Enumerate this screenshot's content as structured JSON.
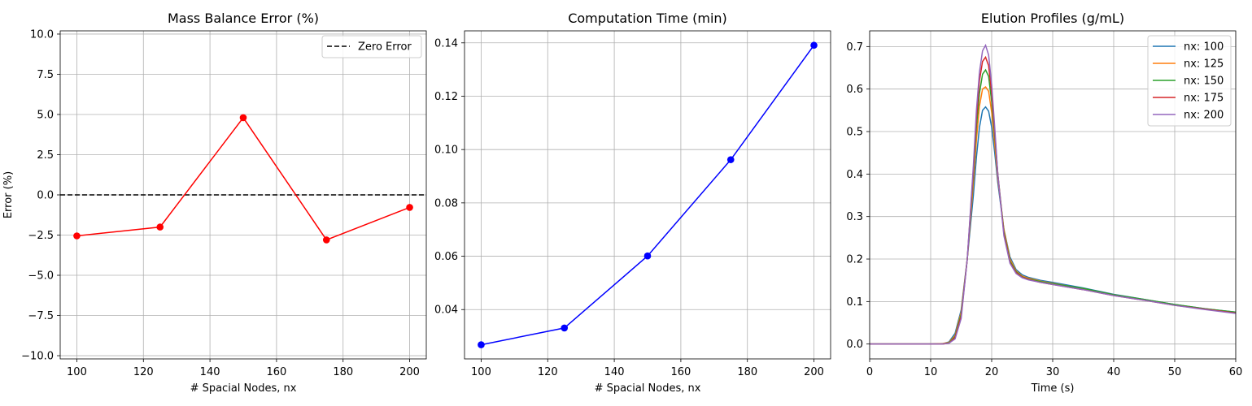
{
  "chart_data": [
    {
      "type": "line",
      "title": "Mass Balance Error (%)",
      "xlabel": "# Spacial Nodes, nx",
      "ylabel": "Error (%)",
      "xlim": [
        95,
        205
      ],
      "ylim": [
        -10.2,
        10.2
      ],
      "xticks": [
        100,
        120,
        140,
        160,
        180,
        200
      ],
      "xtick_labels": [
        "100",
        "120",
        "140",
        "160",
        "180",
        "200"
      ],
      "yticks": [
        -10,
        -7.5,
        -5,
        -2.5,
        0,
        2.5,
        5,
        7.5,
        10
      ],
      "ytick_labels": [
        "−10.0",
        "−7.5",
        "−5.0",
        "−2.5",
        "0.0",
        "2.5",
        "5.0",
        "7.5",
        "10.0"
      ],
      "grid": true,
      "legend_position": "upper right",
      "series": [
        {
          "color": "#ff0000",
          "marker": "circle",
          "x": [
            100,
            125,
            150,
            175,
            200
          ],
          "y": [
            -2.55,
            -2.0,
            4.8,
            -2.8,
            -0.78
          ]
        }
      ],
      "reference_lines": [
        {
          "name": "Zero Error",
          "y": 0,
          "color": "#000000",
          "style": "dashed"
        }
      ]
    },
    {
      "type": "line",
      "title": "Computation Time (min)",
      "xlabel": "# Spacial Nodes, nx",
      "ylabel": "",
      "xlim": [
        95,
        205
      ],
      "ylim": [
        0.0215,
        0.1445
      ],
      "xticks": [
        100,
        120,
        140,
        160,
        180,
        200
      ],
      "xtick_labels": [
        "100",
        "120",
        "140",
        "160",
        "180",
        "200"
      ],
      "yticks": [
        0.04,
        0.06,
        0.08,
        0.1,
        0.12,
        0.14
      ],
      "ytick_labels": [
        "0.04",
        "0.06",
        "0.08",
        "0.10",
        "0.12",
        "0.14"
      ],
      "grid": true,
      "series": [
        {
          "color": "#0000ff",
          "marker": "circle",
          "x": [
            100,
            125,
            150,
            175,
            200
          ],
          "y": [
            0.0268,
            0.0331,
            0.0601,
            0.0962,
            0.1391
          ]
        }
      ]
    },
    {
      "type": "line",
      "title": "Elution Profiles (g/mL)",
      "xlabel": "Time (s)",
      "ylabel": "",
      "xlim": [
        0,
        60
      ],
      "ylim": [
        -0.035,
        0.737
      ],
      "xticks": [
        0,
        10,
        20,
        30,
        40,
        50,
        60
      ],
      "xtick_labels": [
        "0",
        "10",
        "20",
        "30",
        "40",
        "50",
        "60"
      ],
      "yticks": [
        0,
        0.1,
        0.2,
        0.3,
        0.4,
        0.5,
        0.6,
        0.7
      ],
      "ytick_labels": [
        "0.0",
        "0.1",
        "0.2",
        "0.3",
        "0.4",
        "0.5",
        "0.6",
        "0.7"
      ],
      "grid": true,
      "legend_position": "upper right",
      "x": [
        0,
        10,
        12,
        13,
        14,
        15,
        16,
        17,
        17.5,
        18,
        18.5,
        19,
        19.5,
        20,
        20.5,
        21,
        22,
        23,
        24,
        25,
        26,
        28,
        30,
        35,
        40,
        45,
        50,
        55,
        60
      ],
      "series": [
        {
          "name": "nx: 100",
          "color": "#1f77b4",
          "y": [
            0,
            0,
            0.001,
            0.005,
            0.025,
            0.08,
            0.2,
            0.35,
            0.44,
            0.51,
            0.55,
            0.558,
            0.548,
            0.51,
            0.45,
            0.38,
            0.27,
            0.205,
            0.175,
            0.163,
            0.157,
            0.15,
            0.145,
            0.132,
            0.117,
            0.105,
            0.093,
            0.083,
            0.075
          ]
        },
        {
          "name": "nx: 125",
          "color": "#ff7f0e",
          "y": [
            0,
            0,
            0.001,
            0.004,
            0.02,
            0.075,
            0.2,
            0.38,
            0.48,
            0.56,
            0.6,
            0.605,
            0.595,
            0.545,
            0.47,
            0.39,
            0.27,
            0.2,
            0.172,
            0.16,
            0.155,
            0.148,
            0.143,
            0.13,
            0.116,
            0.104,
            0.092,
            0.082,
            0.074
          ]
        },
        {
          "name": "nx: 150",
          "color": "#2ca02c",
          "y": [
            0,
            0,
            0,
            0.003,
            0.017,
            0.07,
            0.2,
            0.4,
            0.51,
            0.59,
            0.635,
            0.645,
            0.63,
            0.57,
            0.49,
            0.4,
            0.265,
            0.195,
            0.17,
            0.158,
            0.153,
            0.147,
            0.142,
            0.131,
            0.116,
            0.105,
            0.093,
            0.083,
            0.075
          ]
        },
        {
          "name": "nx: 175",
          "color": "#d62728",
          "y": [
            0,
            0,
            0,
            0.002,
            0.015,
            0.065,
            0.2,
            0.41,
            0.53,
            0.62,
            0.665,
            0.675,
            0.655,
            0.59,
            0.5,
            0.4,
            0.26,
            0.192,
            0.168,
            0.157,
            0.152,
            0.145,
            0.14,
            0.128,
            0.114,
            0.103,
            0.091,
            0.082,
            0.073
          ]
        },
        {
          "name": "nx: 200",
          "color": "#9467bd",
          "y": [
            0,
            0,
            0,
            0.002,
            0.012,
            0.06,
            0.2,
            0.42,
            0.55,
            0.64,
            0.69,
            0.703,
            0.68,
            0.61,
            0.51,
            0.4,
            0.255,
            0.19,
            0.166,
            0.156,
            0.151,
            0.145,
            0.14,
            0.128,
            0.114,
            0.103,
            0.091,
            0.081,
            0.072
          ]
        }
      ]
    }
  ]
}
